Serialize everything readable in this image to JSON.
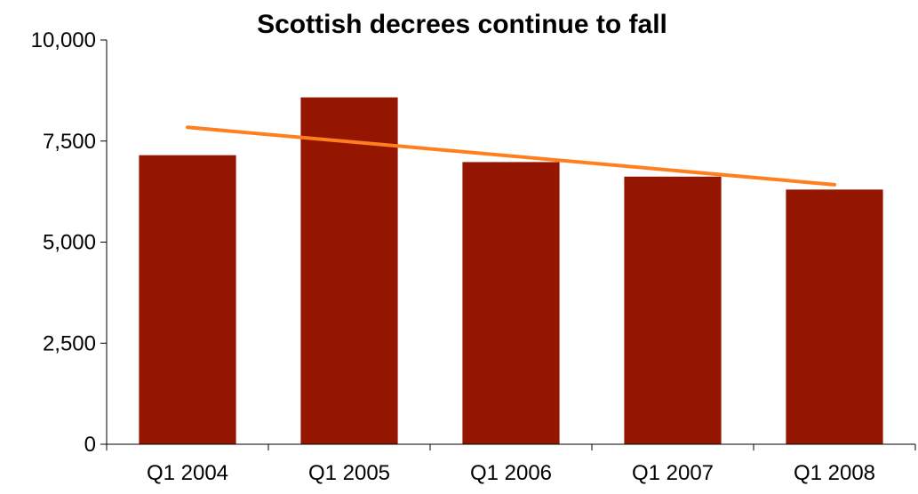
{
  "chart_data": {
    "type": "bar",
    "title": "Scottish decrees continue to fall",
    "categories": [
      "Q1 2004",
      "Q1 2005",
      "Q1 2006",
      "Q1 2007",
      "Q1 2008"
    ],
    "series": [
      {
        "values": [
          7150,
          8580,
          6980,
          6620,
          6300
        ]
      }
    ],
    "trendline": {
      "start": 7840,
      "end": 6420
    },
    "ylim": [
      0,
      10000
    ],
    "yticks": [
      0,
      2500,
      5000,
      7500,
      10000
    ],
    "ytick_labels": [
      "0",
      "2,500",
      "5,000",
      "7,500",
      "10,000"
    ],
    "xlabel": "",
    "ylabel": "",
    "grid": false,
    "legend": "none",
    "colors": {
      "bar": "#941600",
      "trendline": "#ff7f1e",
      "axis": "#000000"
    }
  }
}
